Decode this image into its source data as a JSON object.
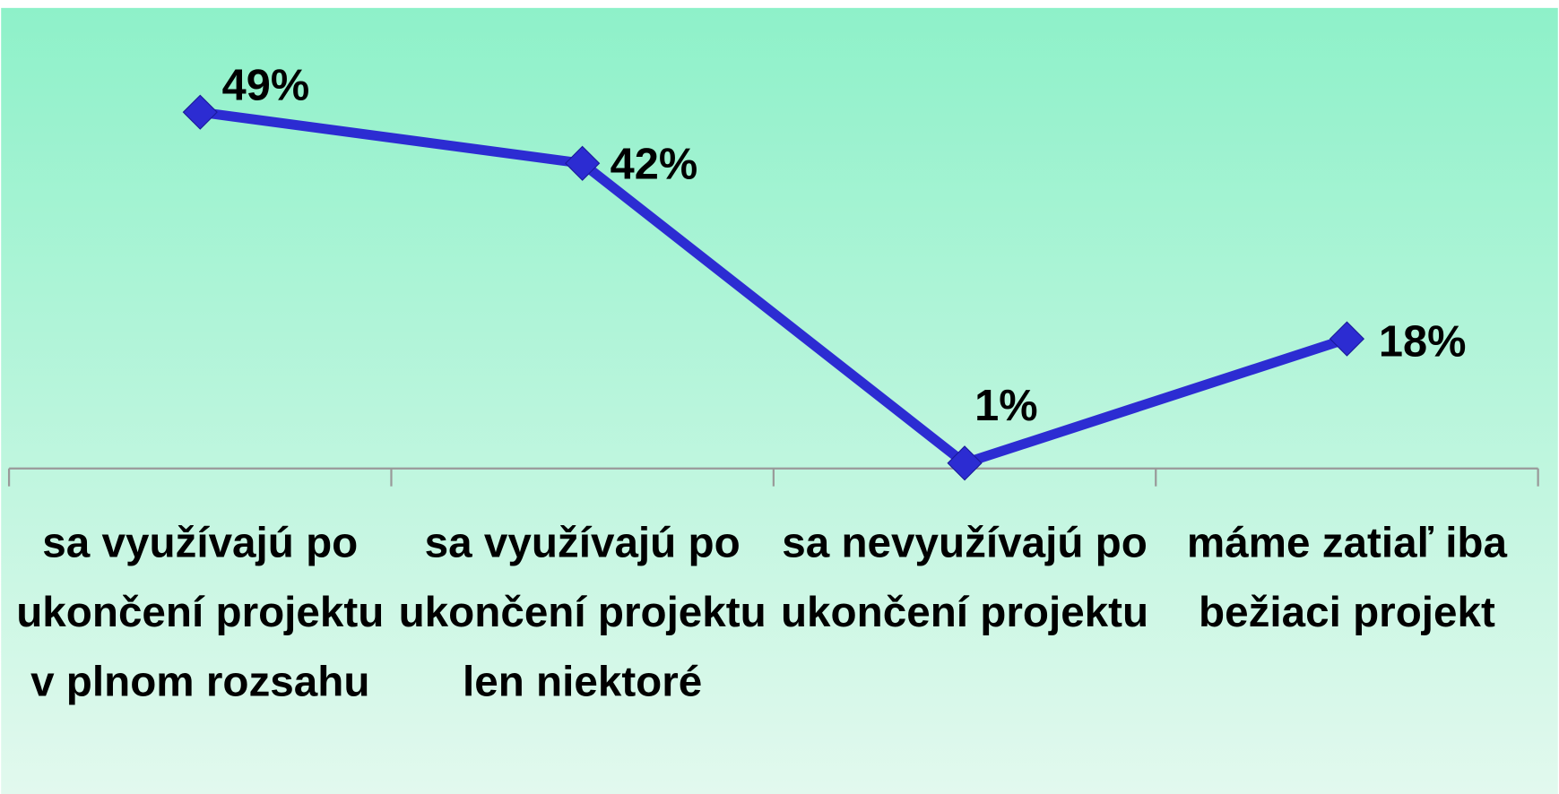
{
  "chart_data": {
    "type": "line",
    "categories": [
      "sa využívajú po ukončení projektu v plnom rozsahu",
      "sa využívajú po ukončení projektu len niektoré",
      "sa nevyužívajú po ukončení projektu",
      "máme zatiaľ iba bežiaci projekt"
    ],
    "series": [
      {
        "color": "#2c2cd2",
        "values": [
          49,
          42,
          1,
          18
        ],
        "value_labels": [
          "49%",
          "42%",
          "1%",
          "18%"
        ]
      }
    ],
    "ylim": [
      0,
      60
    ]
  }
}
